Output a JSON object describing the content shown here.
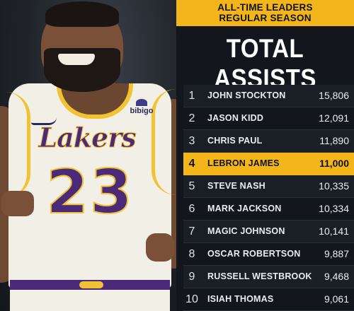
{
  "banner": {
    "line1": "ALL-TIME LEADERS",
    "line2": "REGULAR SEASON"
  },
  "heading": "TOTAL ASSISTS",
  "jersey": {
    "team": "Lakers",
    "number": "23",
    "sponsor": "bibigo"
  },
  "colors": {
    "accent_gold": "#f2b61b",
    "panel_bg": "#13171d",
    "lakers_purple": "#4b2a7a"
  },
  "leaders": [
    {
      "rank": "1",
      "name": "JOHN STOCKTON",
      "value": "15,806"
    },
    {
      "rank": "2",
      "name": "JASON KIDD",
      "value": "12,091"
    },
    {
      "rank": "3",
      "name": "CHRIS PAUL",
      "value": "11,890"
    },
    {
      "rank": "4",
      "name": "LEBRON JAMES",
      "value": "11,000",
      "highlighted": true
    },
    {
      "rank": "5",
      "name": "STEVE NASH",
      "value": "10,335"
    },
    {
      "rank": "6",
      "name": "MARK JACKSON",
      "value": "10,334"
    },
    {
      "rank": "7",
      "name": "MAGIC JOHNSON",
      "value": "10,141"
    },
    {
      "rank": "8",
      "name": "OSCAR ROBERTSON",
      "value": "9,887"
    },
    {
      "rank": "9",
      "name": "RUSSELL WESTBROOK",
      "value": "9,468"
    },
    {
      "rank": "10",
      "name": "ISIAH THOMAS",
      "value": "9,061"
    }
  ]
}
